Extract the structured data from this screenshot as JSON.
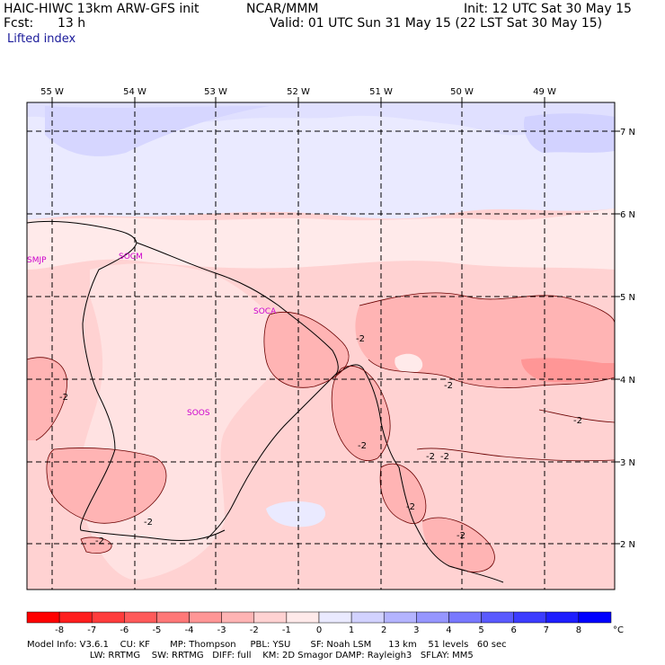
{
  "header": {
    "model": "HAIC-HIWC 13km ARW-GFS init",
    "org": "NCAR/MMM",
    "init": "Init: 12 UTC Sat 30 May 15",
    "fcst_label": "Fcst:",
    "fcst_value": "13 h",
    "valid": "Valid: 01 UTC Sun 31 May 15 (22 LST Sat 30 May 15)",
    "field": "Lifted index"
  },
  "axes": {
    "lon_labels": [
      "55 W",
      "54 W",
      "53 W",
      "52 W",
      "51 W",
      "50 W",
      "49 W"
    ],
    "lat_labels": [
      "7 N",
      "6 N",
      "5 N",
      "4 N",
      "3 N",
      "2 N"
    ]
  },
  "stations": [
    {
      "id": "SMJP"
    },
    {
      "id": "SOCM"
    },
    {
      "id": "SOCA"
    },
    {
      "id": "SOOS"
    }
  ],
  "contour_labels": [
    "-2",
    "-2",
    "-2",
    "-2",
    "-2",
    "-2",
    "-2",
    "-2",
    "-2",
    "-2",
    "-2"
  ],
  "colorbar": {
    "ticks": [
      "-8",
      "-7",
      "-6",
      "-5",
      "-4",
      "-3",
      "-2",
      "-1",
      "0",
      "1",
      "2",
      "3",
      "4",
      "5",
      "6",
      "7",
      "8"
    ],
    "unit": "°C",
    "colors": [
      "#ff0000",
      "#ff1e1e",
      "#ff3c3c",
      "#ff5a5a",
      "#ff7878",
      "#ff9696",
      "#ffb4b4",
      "#ffd2d2",
      "#ffeaea",
      "#eaeaff",
      "#d2d2ff",
      "#b4b4ff",
      "#9696ff",
      "#7878ff",
      "#5a5aff",
      "#3c3cff",
      "#1e1eff",
      "#0000ff"
    ]
  },
  "footer": {
    "line1": "Model Info: V3.6.1    CU: KF       MP: Thompson     PBL: YSU       SF: Noah LSM      13 km    51 levels   60 sec",
    "line2": "                      LW: RRTMG    SW: RRTMG   DIFF: full    KM: 2D Smagor DAMP: Rayleigh3   SFLAY: MM5"
  }
}
